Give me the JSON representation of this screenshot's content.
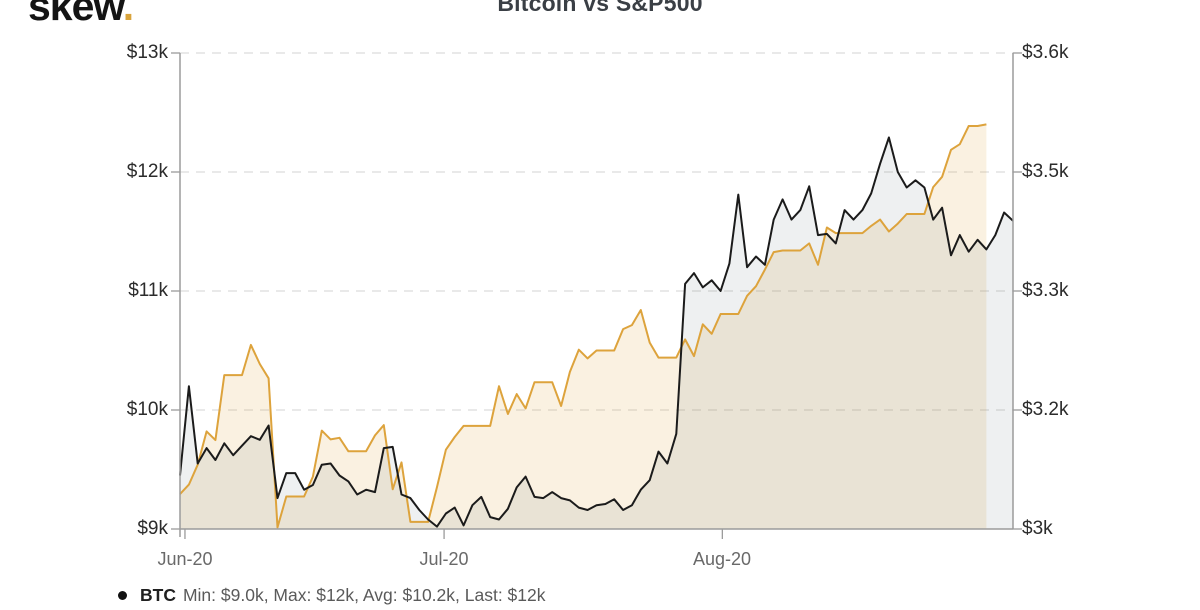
{
  "brand": {
    "logo_text": "skew",
    "logo_dot": "."
  },
  "chart_data": {
    "type": "line",
    "title": "Bitcoin vs S&P500",
    "grid": "horizontal-dashed",
    "legend_position": "bottom-left",
    "x_tick_labels": [
      "Jun-20",
      "Jul-20",
      "Aug-20"
    ],
    "x_tick_days": [
      0.56,
      29.8,
      61.2
    ],
    "x_total_days": 94,
    "yaxis_left": {
      "series": "BTC",
      "min": 9,
      "max": 13,
      "tick_values": [
        13,
        12,
        11,
        10,
        9
      ],
      "tick_labels": [
        "$13k",
        "$12k",
        "$11k",
        "$10k",
        "$9k"
      ]
    },
    "yaxis_right": {
      "series": "S&P500",
      "min": 3.0,
      "max": 3.6,
      "tick_values": [
        3.6,
        3.45,
        3.3,
        3.15,
        3.0
      ],
      "tick_labels": [
        "$3.6k",
        "$3.5k",
        "$3.3k",
        "$3.2k",
        "$3k"
      ]
    },
    "series": [
      {
        "name": "S&P500",
        "axis": "right",
        "color": "#dda33c",
        "fill": "rgba(224,169,68,0.16)",
        "start_day": 0,
        "values": [
          3.044,
          3.056,
          3.081,
          3.123,
          3.112,
          3.194,
          3.194,
          3.194,
          3.232,
          3.208,
          3.19,
          3.002,
          3.041,
          3.041,
          3.041,
          3.066,
          3.124,
          3.113,
          3.115,
          3.098,
          3.098,
          3.098,
          3.118,
          3.131,
          3.05,
          3.084,
          3.009,
          3.009,
          3.009,
          3.053,
          3.1,
          3.116,
          3.13,
          3.13,
          3.13,
          3.13,
          3.18,
          3.145,
          3.17,
          3.152,
          3.185,
          3.185,
          3.185,
          3.155,
          3.198,
          3.226,
          3.215,
          3.225,
          3.225,
          3.225,
          3.252,
          3.257,
          3.276,
          3.235,
          3.216,
          3.216,
          3.216,
          3.239,
          3.218,
          3.258,
          3.246,
          3.271,
          3.271,
          3.271,
          3.294,
          3.306,
          3.327,
          3.349,
          3.351,
          3.351,
          3.351,
          3.36,
          3.333,
          3.38,
          3.373,
          3.373,
          3.373,
          3.373,
          3.382,
          3.39,
          3.375,
          3.385,
          3.397,
          3.397,
          3.397,
          3.431,
          3.444,
          3.478,
          3.485,
          3.508,
          3.508,
          3.51
        ]
      },
      {
        "name": "BTC",
        "axis": "left",
        "color": "#1b1b1b",
        "fill": "rgba(70,85,95,0.09)",
        "start_day": 0,
        "values": [
          9.45,
          10.2,
          9.55,
          9.68,
          9.58,
          9.72,
          9.62,
          9.7,
          9.78,
          9.75,
          9.87,
          9.26,
          9.47,
          9.47,
          9.33,
          9.37,
          9.54,
          9.55,
          9.45,
          9.4,
          9.29,
          9.33,
          9.31,
          9.68,
          9.69,
          9.29,
          9.26,
          9.16,
          9.08,
          9.02,
          9.13,
          9.18,
          9.03,
          9.2,
          9.27,
          9.1,
          9.08,
          9.17,
          9.35,
          9.44,
          9.27,
          9.26,
          9.31,
          9.26,
          9.24,
          9.18,
          9.16,
          9.2,
          9.21,
          9.25,
          9.16,
          9.2,
          9.33,
          9.41,
          9.65,
          9.55,
          9.8,
          11.06,
          11.15,
          11.03,
          11.09,
          11.0,
          11.23,
          11.81,
          11.2,
          11.29,
          11.22,
          11.6,
          11.77,
          11.6,
          11.68,
          11.88,
          11.47,
          11.48,
          11.4,
          11.68,
          11.6,
          11.68,
          11.82,
          12.07,
          12.29,
          12.0,
          11.87,
          11.93,
          11.87,
          11.6,
          11.7,
          11.3,
          11.47,
          11.33,
          11.43,
          11.35,
          11.47,
          11.66,
          11.59
        ]
      }
    ],
    "legend": {
      "series_label": "BTC",
      "stats_text": "Min: $9.0k, Max: $12k, Avg: $10.2k, Last: $12k"
    }
  }
}
